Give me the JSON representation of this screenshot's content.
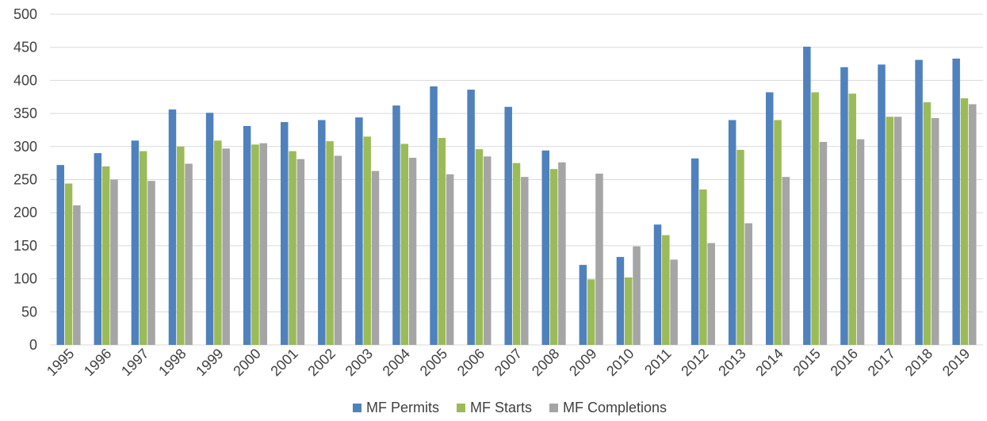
{
  "chart_data": {
    "type": "bar",
    "title": "",
    "xlabel": "",
    "ylabel": "",
    "ylim": [
      0,
      500
    ],
    "yticks": [
      0,
      50,
      100,
      150,
      200,
      250,
      300,
      350,
      400,
      450,
      500
    ],
    "grid": true,
    "legend_position": "bottom",
    "categories": [
      "1995",
      "1996",
      "1997",
      "1998",
      "1999",
      "2000",
      "2001",
      "2002",
      "2003",
      "2004",
      "2005",
      "2006",
      "2007",
      "2008",
      "2009",
      "2010",
      "2011",
      "2012",
      "2013",
      "2014",
      "2015",
      "2016",
      "2017",
      "2018",
      "2019"
    ],
    "series": [
      {
        "name": "MF Permits",
        "color": "#4f81bd",
        "values": [
          272,
          290,
          309,
          356,
          351,
          331,
          337,
          340,
          344,
          362,
          391,
          386,
          360,
          294,
          121,
          133,
          182,
          282,
          340,
          382,
          451,
          420,
          424,
          431,
          433
        ]
      },
      {
        "name": "MF Starts",
        "color": "#9bbb59",
        "values": [
          244,
          270,
          293,
          300,
          309,
          303,
          293,
          308,
          315,
          304,
          313,
          296,
          275,
          266,
          99,
          102,
          166,
          235,
          295,
          340,
          382,
          380,
          345,
          367,
          373
        ]
      },
      {
        "name": "MF Completions",
        "color": "#a5a5a5",
        "values": [
          211,
          250,
          248,
          274,
          297,
          305,
          281,
          286,
          263,
          283,
          258,
          285,
          254,
          276,
          259,
          149,
          129,
          154,
          184,
          254,
          307,
          311,
          345,
          343,
          364
        ]
      }
    ]
  }
}
